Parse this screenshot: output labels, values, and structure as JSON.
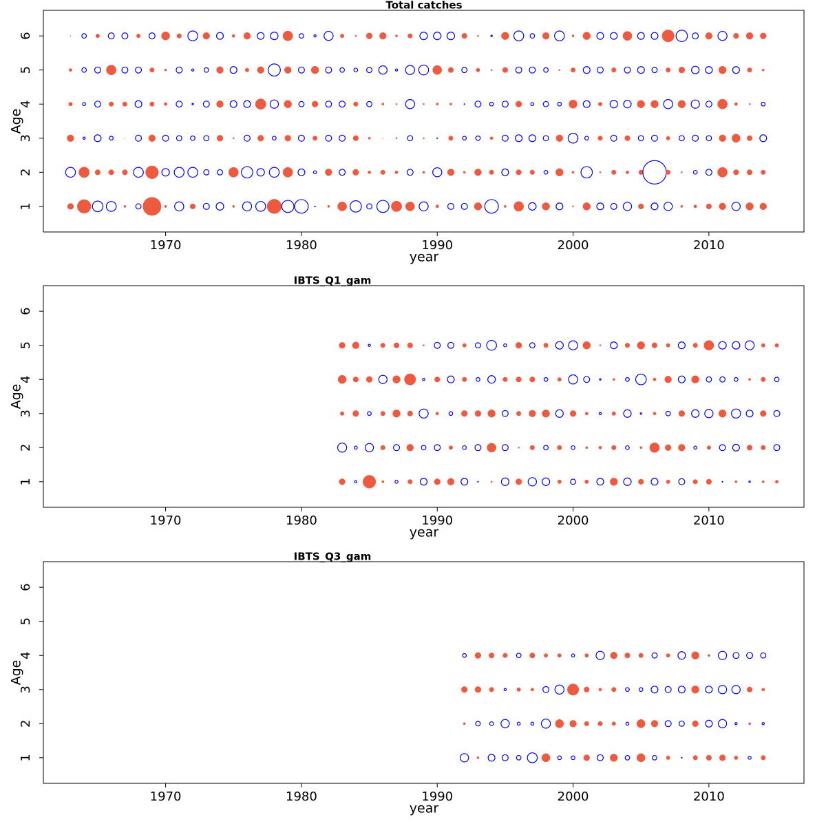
{
  "chart_data": [
    {
      "type": "bubble",
      "title": "Total catches",
      "x_label": "year",
      "y_label": "Age",
      "xlim": [
        1961,
        2017
      ],
      "ylim": [
        0.25,
        6.75
      ],
      "xticks": [
        1970,
        1980,
        1990,
        2000,
        2010
      ],
      "yticks": [
        1,
        2,
        3,
        4,
        5,
        6
      ],
      "positive_color": "#ee5a40",
      "negative_color": "#0000ff",
      "x": [
        1963,
        1964,
        1965,
        1966,
        1967,
        1968,
        1969,
        1970,
        1971,
        1972,
        1973,
        1974,
        1975,
        1976,
        1977,
        1978,
        1979,
        1980,
        1981,
        1982,
        1983,
        1984,
        1985,
        1986,
        1987,
        1988,
        1989,
        1990,
        1991,
        1992,
        1993,
        1994,
        1995,
        1996,
        1997,
        1998,
        1999,
        2000,
        2001,
        2002,
        2003,
        2004,
        2005,
        2006,
        2007,
        2008,
        2009,
        2010,
        2011,
        2012,
        2013,
        2014
      ],
      "y": [
        1,
        2,
        3,
        4,
        5,
        6
      ],
      "values": [
        [
          0.8,
          1.8,
          -1.4,
          -1.3,
          0.3,
          -0.7,
          2.4,
          0.3,
          -1.2,
          0.7,
          -0.8,
          -1.0,
          0.3,
          -1.2,
          -1.3,
          1.9,
          -1.6,
          -1.8,
          -0.1,
          0.3,
          1.2,
          -1.5,
          -0.7,
          -1.6,
          1.4,
          1.2,
          -1.2,
          0.4,
          -0.8,
          -0.8,
          1.0,
          -1.8,
          0.3,
          1.3,
          -1.0,
          1.0,
          -0.9,
          0.2,
          1.0,
          -0.9,
          -0.8,
          -1.1,
          0.7,
          -0.9,
          -1.1,
          0.3,
          0.4,
          0.7,
          0.9,
          -1.1,
          1.0,
          0.9
        ],
        [
          -1.3,
          1.4,
          0.7,
          0.7,
          0.7,
          -1.3,
          1.7,
          -1.0,
          -1.3,
          -1.3,
          -0.7,
          -0.7,
          1.3,
          -1.5,
          -1.0,
          -1.3,
          1.3,
          -0.9,
          -0.4,
          0.9,
          -0.8,
          0.8,
          0.4,
          0.6,
          0.4,
          -0.8,
          0.3,
          -1.2,
          0.9,
          0.3,
          0.9,
          0.6,
          -0.9,
          0.7,
          0.6,
          -0.5,
          1.0,
          0.3,
          -1.5,
          0.2,
          0.6,
          0.4,
          0.6,
          -3.1,
          0.6,
          0.2,
          -0.5,
          -0.8,
          1.3,
          0.7,
          0.7,
          0.6
        ],
        [
          0.9,
          -0.3,
          -0.9,
          -0.5,
          0.1,
          -0.8,
          0.9,
          -0.8,
          -0.7,
          -0.6,
          -0.7,
          0.8,
          0.2,
          -0.8,
          0.8,
          -0.5,
          0.8,
          -0.8,
          0.6,
          -0.8,
          -0.8,
          0.7,
          0.3,
          0.1,
          0.2,
          -0.7,
          0.2,
          -0.1,
          0.6,
          -0.5,
          -0.6,
          0.4,
          -0.8,
          -0.9,
          -0.9,
          -0.7,
          0.9,
          -1.3,
          -0.5,
          0.6,
          -0.8,
          0.7,
          -0.7,
          -0.8,
          0.5,
          -0.7,
          -0.8,
          -0.7,
          0.9,
          1.1,
          0.7,
          -0.9
        ],
        [
          0.5,
          -0.4,
          -0.8,
          0.6,
          0.6,
          -0.9,
          0.6,
          0.4,
          -0.8,
          -0.2,
          -0.8,
          0.9,
          -0.9,
          -0.9,
          1.4,
          -1.1,
          1.0,
          -0.7,
          0.8,
          -0.8,
          -0.8,
          0.6,
          -0.7,
          0.3,
          0.2,
          -1.2,
          0.2,
          0.3,
          0.3,
          -0.1,
          -0.8,
          -0.5,
          -0.8,
          0.8,
          -0.4,
          -0.7,
          -0.5,
          1.1,
          -0.9,
          0.5,
          -1.0,
          -1.0,
          1.0,
          1.0,
          -1.2,
          1.0,
          -1.1,
          -0.8,
          1.3,
          0.4,
          0.2,
          -0.5
        ],
        [
          0.4,
          -0.6,
          -0.8,
          1.3,
          -0.8,
          -0.8,
          0.6,
          0.3,
          -0.8,
          -0.3,
          -0.6,
          0.9,
          -0.9,
          0.5,
          0.9,
          -1.6,
          0.9,
          -0.8,
          1.0,
          -0.8,
          -0.6,
          -0.5,
          -0.7,
          -1.1,
          -0.3,
          -1.2,
          -1.3,
          1.2,
          0.7,
          -0.7,
          0.5,
          0.2,
          0.7,
          -0.8,
          -0.8,
          -0.6,
          0.2,
          0.6,
          -0.9,
          -0.8,
          0.6,
          -0.8,
          -0.9,
          -0.7,
          0.6,
          0.8,
          -1.0,
          -0.9,
          1.0,
          -0.9,
          0.6,
          0.3
        ],
        [
          0.1,
          -0.6,
          0.5,
          -0.8,
          -0.8,
          0.5,
          -0.8,
          1.1,
          0.6,
          -1.3,
          0.9,
          -0.9,
          0.4,
          0.9,
          -0.9,
          -1.0,
          1.3,
          -0.6,
          -0.3,
          -1.2,
          0.5,
          0.2,
          0.8,
          0.9,
          0.3,
          0.6,
          -1.0,
          -1.0,
          -1.0,
          0.7,
          0.2,
          -0.2,
          1.0,
          -1.3,
          -0.6,
          0.9,
          -1.3,
          0.3,
          1.0,
          -0.9,
          -0.9,
          1.2,
          -0.9,
          -0.9,
          1.6,
          -1.5,
          -0.8,
          0.9,
          -1.2,
          0.7,
          0.9,
          0.8
        ]
      ]
    },
    {
      "type": "bubble",
      "title": "IBTS_Q1_gam",
      "x_label": "year",
      "y_label": "Age",
      "xlim": [
        1961,
        2017
      ],
      "ylim": [
        0.25,
        6.75
      ],
      "xticks": [
        1970,
        1980,
        1990,
        2000,
        2010
      ],
      "yticks": [
        1,
        2,
        3,
        4,
        5,
        6
      ],
      "positive_color": "#ee5a40",
      "negative_color": "#0000ff",
      "x": [
        1983,
        1984,
        1985,
        1986,
        1987,
        1988,
        1989,
        1990,
        1991,
        1992,
        1993,
        1994,
        1995,
        1996,
        1997,
        1998,
        1999,
        2000,
        2001,
        2002,
        2003,
        2004,
        2005,
        2006,
        2007,
        2008,
        2009,
        2010,
        2011,
        2012,
        2013,
        2014,
        2015
      ],
      "y": [
        1,
        2,
        3,
        4,
        5
      ],
      "values": [
        [
          0.8,
          -0.3,
          1.7,
          0.3,
          -0.4,
          0.6,
          -0.9,
          0.8,
          0.9,
          -0.9,
          -0.1,
          0.2,
          -1.0,
          0.8,
          -1.1,
          -1.0,
          0.5,
          -0.7,
          0.5,
          -0.9,
          1.0,
          -1.0,
          0.7,
          -0.9,
          0.5,
          -0.8,
          0.6,
          0.7,
          -0.1,
          0.3,
          -0.2,
          0.3,
          0.4
        ],
        [
          -1.2,
          -0.4,
          -1.1,
          0.6,
          -0.8,
          0.9,
          -0.6,
          -0.8,
          0.5,
          -0.5,
          -0.8,
          1.2,
          -0.8,
          0.2,
          0.6,
          -0.6,
          0.6,
          -0.5,
          0.3,
          0.4,
          0.6,
          -0.5,
          0.3,
          1.3,
          0.8,
          0.9,
          -0.4,
          0.5,
          -0.8,
          -0.9,
          0.7,
          0.6,
          -0.8
        ],
        [
          0.5,
          0.8,
          -0.5,
          0.6,
          1.0,
          0.7,
          -1.2,
          0.4,
          -0.5,
          0.8,
          0.8,
          1.0,
          -0.8,
          0.6,
          0.9,
          1.0,
          -1.0,
          0.8,
          0.4,
          -0.3,
          0.5,
          -1.0,
          -0.2,
          0.4,
          -0.6,
          0.8,
          -1.0,
          -1.1,
          1.0,
          -1.2,
          -0.9,
          0.8,
          -0.8
        ],
        [
          1.1,
          0.7,
          0.8,
          -1.1,
          1.0,
          1.5,
          -0.3,
          0.7,
          -0.9,
          0.6,
          -0.5,
          -1.0,
          0.6,
          0.7,
          0.7,
          -0.5,
          0.5,
          -1.2,
          -0.8,
          -0.2,
          0.3,
          -0.5,
          -1.4,
          0.4,
          0.9,
          -0.9,
          1.0,
          -0.7,
          -0.7,
          -0.5,
          0.3,
          0.6,
          -0.6
        ],
        [
          0.8,
          0.9,
          -0.3,
          0.6,
          0.7,
          0.7,
          0.2,
          -0.8,
          -0.8,
          0.5,
          -0.7,
          -1.3,
          -0.4,
          0.8,
          -0.7,
          0.6,
          -1.0,
          -1.2,
          1.0,
          0.2,
          -0.9,
          0.6,
          1.0,
          0.7,
          0.5,
          -0.9,
          0.6,
          1.3,
          -1.0,
          -1.0,
          -1.2,
          0.5,
          0.5
        ]
      ]
    },
    {
      "type": "bubble",
      "title": "IBTS_Q3_gam",
      "x_label": "year",
      "y_label": "Age",
      "xlim": [
        1961,
        2017
      ],
      "ylim": [
        0.25,
        6.75
      ],
      "xticks": [
        1970,
        1980,
        1990,
        2000,
        2010
      ],
      "yticks": [
        1,
        2,
        3,
        4,
        5,
        6
      ],
      "positive_color": "#ee5a40",
      "negative_color": "#0000ff",
      "x": [
        1992,
        1993,
        1994,
        1995,
        1996,
        1997,
        1998,
        1999,
        2000,
        2001,
        2002,
        2003,
        2004,
        2005,
        2006,
        2007,
        2008,
        2009,
        2010,
        2011,
        2012,
        2013,
        2014
      ],
      "y": [
        1,
        2,
        3,
        4
      ],
      "values": [
        [
          -1.1,
          0.3,
          -0.9,
          -0.8,
          -0.6,
          -1.3,
          1.1,
          -0.5,
          -0.5,
          0.8,
          -0.8,
          1.0,
          -0.6,
          1.1,
          -0.6,
          0.5,
          -0.1,
          0.6,
          0.7,
          0.8,
          0.5,
          -0.4,
          0.6
        ],
        [
          0.3,
          -0.6,
          -0.5,
          -1.1,
          -0.4,
          -0.4,
          -1.2,
          1.1,
          0.9,
          0.6,
          0.6,
          0.5,
          -0.4,
          1.1,
          0.9,
          -0.8,
          -0.7,
          0.8,
          -0.9,
          -1.1,
          -0.3,
          0.3,
          -0.3
        ],
        [
          0.8,
          0.8,
          0.6,
          -0.3,
          0.5,
          0.4,
          -0.8,
          -1.2,
          1.5,
          0.7,
          0.4,
          0.6,
          -0.5,
          -0.5,
          -0.9,
          -0.8,
          -0.9,
          1.0,
          -0.9,
          -1.1,
          -1.1,
          0.7,
          0.4
        ],
        [
          -0.5,
          0.8,
          0.7,
          0.6,
          -0.6,
          0.7,
          0.5,
          0.5,
          -0.4,
          0.5,
          -1.1,
          0.9,
          0.7,
          0.6,
          -0.7,
          0.5,
          -1.0,
          1.0,
          0.3,
          -1.1,
          -0.8,
          -0.8,
          -0.7
        ]
      ]
    }
  ]
}
